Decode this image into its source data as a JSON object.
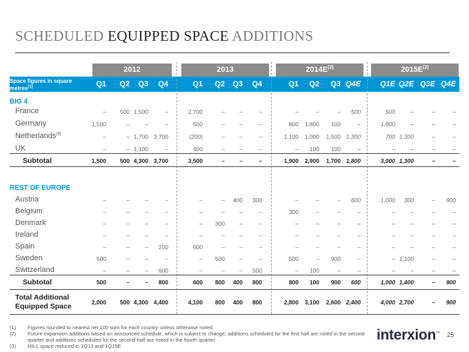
{
  "title": {
    "part1": "SCHEDULED ",
    "part2": "EQUIPPED SPACE",
    "part3": " ADDITIONS"
  },
  "header": {
    "label": "Space figures in square metres",
    "label_sup": "(1)",
    "years": [
      {
        "text": "2012",
        "sup": ""
      },
      {
        "text": "2013",
        "sup": ""
      },
      {
        "text": "2014E",
        "sup": "(2)"
      },
      {
        "text": "2015E",
        "sup": "(2)"
      }
    ],
    "quarters": [
      "Q1",
      "Q2",
      "Q3",
      "Q4",
      "Q1",
      "Q2",
      "Q3",
      "Q4",
      "Q1",
      "Q2",
      "Q3",
      "Q4E",
      "Q1E",
      "Q2E",
      "Q3E",
      "Q4E"
    ]
  },
  "sections": {
    "big4": "BIG 4",
    "rest": "REST OF EUROPE"
  },
  "big4_rows": [
    {
      "label": "France",
      "sup": "",
      "values": [
        "–",
        "500",
        "1,500",
        "–",
        "2,700",
        "–",
        "–",
        "–",
        "–",
        "–",
        "–",
        "500",
        "500",
        "–",
        "–",
        "–"
      ]
    },
    {
      "label": "Germany",
      "sup": "",
      "values": [
        "1,500",
        "–",
        "–",
        "–",
        "600",
        "–",
        "–",
        "–",
        "800",
        "1,800",
        "100",
        "–",
        "1,800",
        "–",
        "–",
        "–"
      ]
    },
    {
      "label": "Netherlands",
      "sup": "(3)",
      "values": [
        "–",
        "–",
        "1,700",
        "3,700",
        "(200)",
        "–",
        "–",
        "–",
        "1,100",
        "1,000",
        "1,500",
        "1,300",
        "700",
        "1,300",
        "–",
        "–"
      ]
    },
    {
      "label": "UK",
      "sup": "",
      "values": [
        "–",
        "–",
        "1,100",
        "–",
        "400",
        "–",
        "–",
        "–",
        "–",
        "100",
        "100",
        "–",
        "–",
        "–",
        "–",
        "–"
      ]
    }
  ],
  "big4_subtotal": {
    "label": "Subtotal",
    "values": [
      "1,500",
      "500",
      "4,300",
      "3,700",
      "3,500",
      "–",
      "–",
      "–",
      "1,900",
      "2,900",
      "1,700",
      "1,800",
      "3,000",
      "1,300",
      "–",
      "–"
    ]
  },
  "rest_rows": [
    {
      "label": "Austria",
      "values": [
        "–",
        "–",
        "–",
        "–",
        "–",
        "–",
        "400",
        "300",
        "–",
        "–",
        "–",
        "600",
        "1,000",
        "300",
        "–",
        "900"
      ]
    },
    {
      "label": "Belgium",
      "values": [
        "–",
        "–",
        "–",
        "–",
        "–",
        "–",
        "–",
        "–",
        "300",
        "–",
        "–",
        "–",
        "–",
        "–",
        "–",
        "–"
      ]
    },
    {
      "label": "Denmark",
      "values": [
        "–",
        "–",
        "–",
        "–",
        "–",
        "300",
        "–",
        "–",
        "–",
        "–",
        "–",
        "–",
        "–",
        "–",
        "–",
        "–"
      ]
    },
    {
      "label": "Ireland",
      "values": [
        "–",
        "–",
        "–",
        "–",
        "–",
        "–",
        "–",
        "–",
        "–",
        "–",
        "–",
        "–",
        "–",
        "–",
        "–",
        "–"
      ]
    },
    {
      "label": "Spain",
      "values": [
        "–",
        "–",
        "–",
        "200",
        "600",
        "–",
        "–",
        "–",
        "–",
        "–",
        "–",
        "–",
        "–",
        "–",
        "–",
        "–"
      ]
    },
    {
      "label": "Sweden",
      "values": [
        "500",
        "–",
        "–",
        "–",
        "–",
        "500",
        "–",
        "–",
        "500",
        "–",
        "900",
        "–",
        "–",
        "1,100",
        "–",
        "–"
      ]
    },
    {
      "label": "Switzerland",
      "values": [
        "–",
        "–",
        "–",
        "600",
        "–",
        "–",
        "–",
        "500",
        "–",
        "100",
        "–",
        "–",
        "–",
        "–",
        "–",
        "–"
      ]
    }
  ],
  "rest_subtotal": {
    "label": "Subtotal",
    "values": [
      "500",
      "–",
      "–",
      "800",
      "600",
      "800",
      "400",
      "800",
      "800",
      "100",
      "900",
      "600",
      "1,000",
      "1,400",
      "–",
      "900"
    ]
  },
  "total": {
    "label": "Total Additional Equipped Space",
    "values": [
      "2,000",
      "500",
      "4,300",
      "4,400",
      "4,100",
      "800",
      "400",
      "800",
      "2,800",
      "3,100",
      "2,600",
      "2,400",
      "4,000",
      "2,700",
      "–",
      "900"
    ]
  },
  "footnotes": [
    {
      "n": "(1)",
      "text": "Figures rounded to nearest net 100 sqm for each country unless otherwise noted."
    },
    {
      "n": "(2)",
      "text": "Future expansion additions based on announced schedule, which is subject to change; additions scheduled for the first half are noted in the second quarter and additions scheduled for the second half are noted in the fourth quarter."
    },
    {
      "n": "(3)",
      "text": "HIL1 space reduced in 1Q13 and 1Q15E."
    }
  ],
  "logo": {
    "text": "interxion",
    "mark": "™"
  },
  "page_number": "25"
}
